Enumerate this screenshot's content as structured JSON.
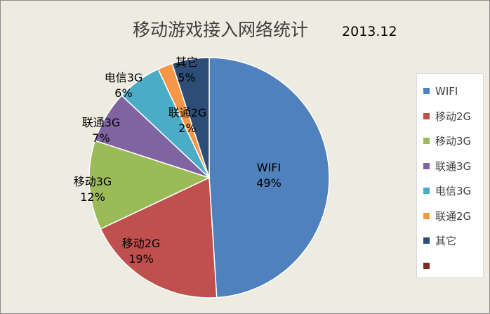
{
  "chart_data": {
    "type": "pie",
    "title": "移动游戏接入网络统计",
    "subtitle": "2013.12",
    "slices": [
      {
        "name": "WIFI",
        "value": 49,
        "label": "49%",
        "color": "#4f81bd"
      },
      {
        "name": "移动2G",
        "value": 19,
        "label": "19%",
        "color": "#c0504d"
      },
      {
        "name": "移动3G",
        "value": 12,
        "label": "12%",
        "color": "#9bbb59"
      },
      {
        "name": "联通3G",
        "value": 7,
        "label": "7%",
        "color": "#8064a2"
      },
      {
        "name": "电信3G",
        "value": 6,
        "label": "6%",
        "color": "#4bacc6"
      },
      {
        "name": "联通2G",
        "value": 2,
        "label": "2%",
        "color": "#f79646"
      },
      {
        "name": "其它",
        "value": 5,
        "label": "5%",
        "color": "#2c4d75"
      }
    ],
    "legend": {
      "position": "right",
      "entries": [
        {
          "name": "WIFI",
          "color": "#4f81bd"
        },
        {
          "name": "移动2G",
          "color": "#c0504d"
        },
        {
          "name": "移动3G",
          "color": "#9bbb59"
        },
        {
          "name": "联通3G",
          "color": "#8064a2"
        },
        {
          "name": "电信3G",
          "color": "#4bacc6"
        },
        {
          "name": "联通2G",
          "color": "#f79646"
        },
        {
          "name": "其它",
          "color": "#2c4d75"
        },
        {
          "name": "",
          "color": "#772c2a"
        }
      ]
    }
  }
}
